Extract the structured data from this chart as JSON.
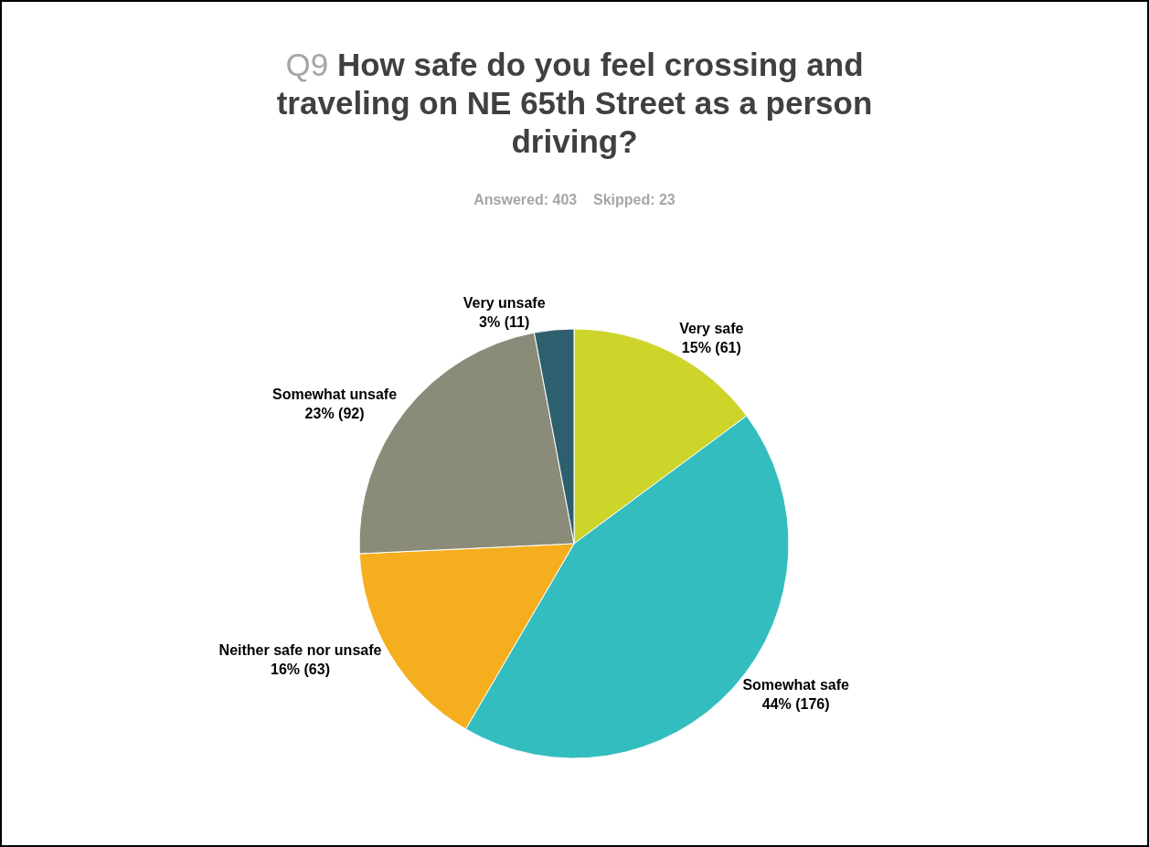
{
  "chart_data": {
    "type": "pie",
    "title": "Q9 How safe do you feel crossing and traveling on NE 65th Street as a person driving?",
    "subtitle": "Answered: 403    Skipped: 23",
    "categories": [
      "Very safe",
      "Somewhat safe",
      "Neither safe nor unsafe",
      "Somewhat unsafe",
      "Very unsafe"
    ],
    "values": [
      15,
      44,
      16,
      23,
      3
    ],
    "value_labels": [
      "15% (61)",
      "44% (176)",
      "16% (63)",
      "23% (92)",
      "3% (11)"
    ],
    "colors": [
      "#cdd42a",
      "#33bdbf",
      "#f5ae1e",
      "#8b8b7a",
      "#2d5f6e"
    ],
    "legend": false
  }
}
